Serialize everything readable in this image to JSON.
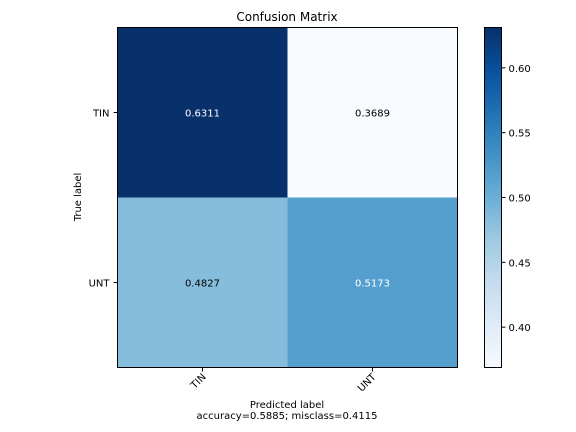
{
  "chart_data": {
    "type": "heatmap",
    "title": "Confusion Matrix",
    "xlabel": "Predicted label",
    "xlabel_sub": "accuracy=0.5885; misclass=0.4115",
    "ylabel": "True label",
    "x_categories": [
      "TIN",
      "UNT"
    ],
    "y_categories": [
      "TIN",
      "UNT"
    ],
    "values": [
      [
        0.6311,
        0.3689
      ],
      [
        0.4827,
        0.5173
      ]
    ],
    "cell_labels": [
      [
        "0.6311",
        "0.3689"
      ],
      [
        "0.4827",
        "0.5173"
      ]
    ],
    "colormap": "Blues",
    "colorbar": {
      "range": [
        0.3689,
        0.6311
      ],
      "ticks": [
        0.4,
        0.45,
        0.5,
        0.55,
        0.6
      ],
      "tick_labels": [
        "0.40",
        "0.45",
        "0.50",
        "0.55",
        "0.60"
      ]
    },
    "grid": false
  }
}
